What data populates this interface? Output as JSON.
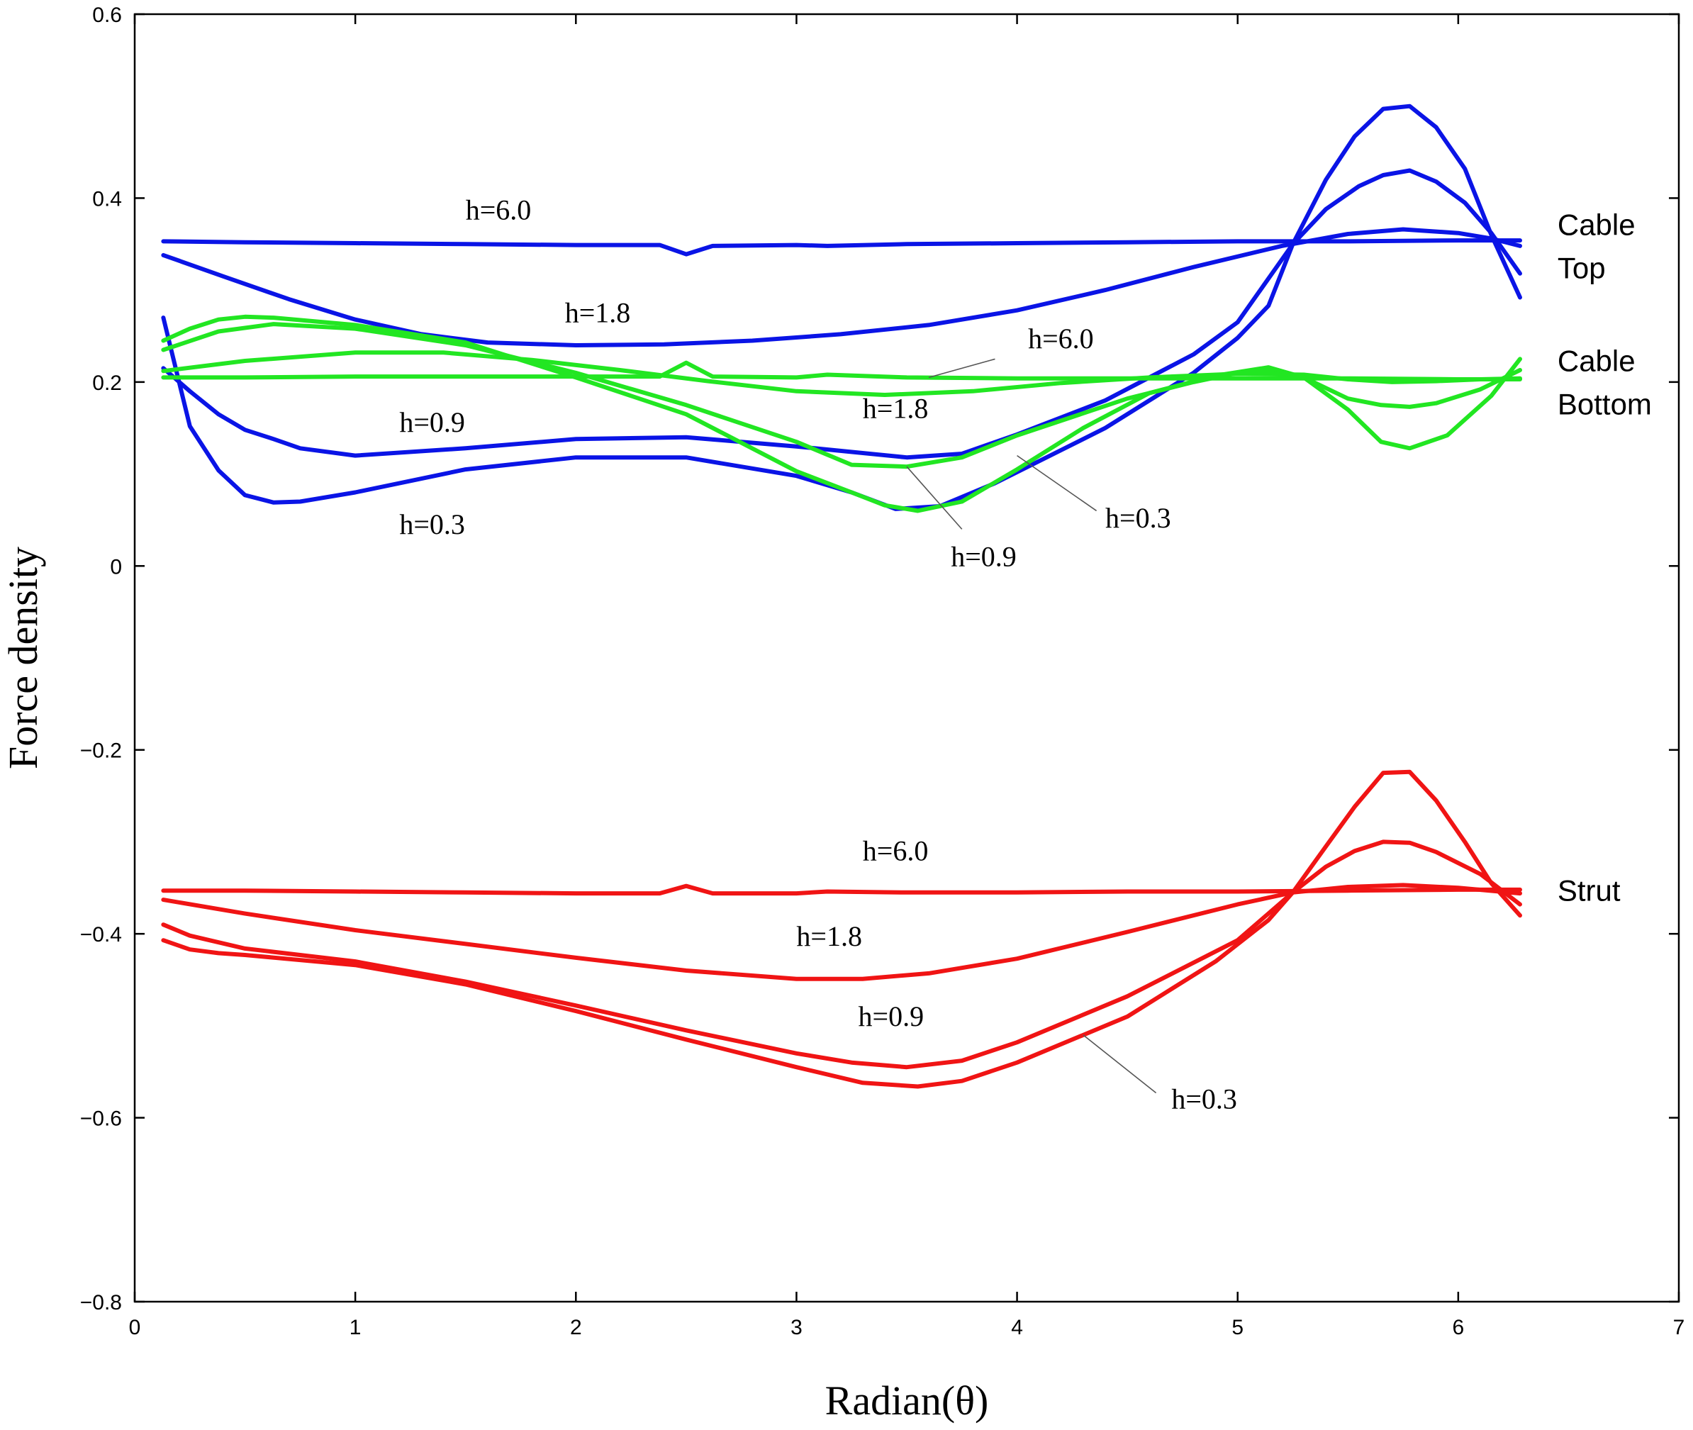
{
  "chart_data": {
    "type": "line",
    "title": "",
    "xlabel": "Radian(θ)",
    "ylabel": "Force density",
    "xlim": [
      0,
      7
    ],
    "ylim": [
      -0.8,
      0.6
    ],
    "xticks": [
      0,
      1,
      2,
      3,
      4,
      5,
      6,
      7
    ],
    "xtick_labels": [
      "0",
      "1",
      "2",
      "3",
      "4",
      "5",
      "6",
      "7"
    ],
    "yticks": [
      -0.8,
      -0.6,
      -0.4,
      -0.2,
      0,
      0.2,
      0.4,
      0.6
    ],
    "ytick_labels": [
      "−0.8",
      "−0.6",
      "−0.4",
      "−0.2",
      "0",
      "0.2",
      "0.4",
      "0.6"
    ],
    "grid": false,
    "colors": {
      "cable_top": "#0a14e6",
      "cable_bottom": "#22e622",
      "strut": "#f01414",
      "leader": "#555555"
    },
    "group_labels": [
      {
        "text": "Cable",
        "x": 6.45,
        "y": 0.36
      },
      {
        "text": "Top",
        "x": 6.45,
        "y": 0.313
      },
      {
        "text": "Cable",
        "x": 6.45,
        "y": 0.212
      },
      {
        "text": "Bottom",
        "x": 6.45,
        "y": 0.165
      },
      {
        "text": "Strut",
        "x": 6.45,
        "y": -0.364
      }
    ],
    "annotations": [
      {
        "text": "h=6.0",
        "x": 1.5,
        "y": 0.377
      },
      {
        "text": "h=1.8",
        "x": 1.95,
        "y": 0.265
      },
      {
        "text": "h=6.0",
        "x": 4.05,
        "y": 0.237,
        "leader_from": [
          3.9,
          0.225
        ],
        "leader_to": [
          3.6,
          0.205
        ]
      },
      {
        "text": "h=1.8",
        "x": 3.3,
        "y": 0.161
      },
      {
        "text": "h=0.9",
        "x": 1.2,
        "y": 0.146
      },
      {
        "text": "h=0.3",
        "x": 1.2,
        "y": 0.035
      },
      {
        "text": "h=0.3",
        "x": 4.4,
        "y": 0.042,
        "leader_from": [
          4.36,
          0.06
        ],
        "leader_to": [
          4.0,
          0.12
        ]
      },
      {
        "text": "h=0.9",
        "x": 3.7,
        "y": 0.0,
        "leader_from": [
          3.75,
          0.04
        ],
        "leader_to": [
          3.5,
          0.108
        ]
      },
      {
        "text": "h=6.0",
        "x": 3.3,
        "y": -0.32
      },
      {
        "text": "h=1.8",
        "x": 3.0,
        "y": -0.413
      },
      {
        "text": "h=0.9",
        "x": 3.28,
        "y": -0.5
      },
      {
        "text": "h=0.3",
        "x": 4.7,
        "y": -0.59,
        "leader_from": [
          4.63,
          -0.573
        ],
        "leader_to": [
          4.3,
          -0.51
        ]
      }
    ],
    "series": [
      {
        "group": "cable_top",
        "values": [
          [
            0.13,
            0.353
          ],
          [
            0.5,
            0.352
          ],
          [
            1.0,
            0.351
          ],
          [
            1.5,
            0.35
          ],
          [
            2.0,
            0.349
          ],
          [
            2.38,
            0.349
          ],
          [
            2.5,
            0.339
          ],
          [
            2.62,
            0.348
          ],
          [
            3.0,
            0.349
          ],
          [
            3.14,
            0.348
          ],
          [
            3.5,
            0.35
          ],
          [
            4.0,
            0.351
          ],
          [
            4.5,
            0.352
          ],
          [
            5.0,
            0.353
          ],
          [
            5.5,
            0.353
          ],
          [
            6.0,
            0.354
          ],
          [
            6.28,
            0.354
          ]
        ]
      },
      {
        "group": "cable_top",
        "values": [
          [
            0.13,
            0.338
          ],
          [
            0.4,
            0.315
          ],
          [
            0.7,
            0.29
          ],
          [
            1.0,
            0.268
          ],
          [
            1.3,
            0.252
          ],
          [
            1.6,
            0.243
          ],
          [
            2.0,
            0.24
          ],
          [
            2.4,
            0.241
          ],
          [
            2.8,
            0.245
          ],
          [
            3.2,
            0.252
          ],
          [
            3.6,
            0.262
          ],
          [
            4.0,
            0.278
          ],
          [
            4.4,
            0.3
          ],
          [
            4.8,
            0.325
          ],
          [
            5.2,
            0.348
          ],
          [
            5.5,
            0.361
          ],
          [
            5.75,
            0.366
          ],
          [
            6.0,
            0.362
          ],
          [
            6.15,
            0.356
          ],
          [
            6.28,
            0.348
          ]
        ]
      },
      {
        "group": "cable_top",
        "values": [
          [
            0.13,
            0.215
          ],
          [
            0.25,
            0.19
          ],
          [
            0.38,
            0.165
          ],
          [
            0.5,
            0.148
          ],
          [
            0.63,
            0.138
          ],
          [
            0.75,
            0.128
          ],
          [
            1.0,
            0.12
          ],
          [
            1.5,
            0.128
          ],
          [
            2.0,
            0.138
          ],
          [
            2.5,
            0.14
          ],
          [
            3.0,
            0.13
          ],
          [
            3.5,
            0.118
          ],
          [
            3.75,
            0.122
          ],
          [
            4.0,
            0.143
          ],
          [
            4.4,
            0.18
          ],
          [
            4.8,
            0.23
          ],
          [
            5.0,
            0.265
          ],
          [
            5.25,
            0.35
          ],
          [
            5.4,
            0.388
          ],
          [
            5.55,
            0.413
          ],
          [
            5.66,
            0.425
          ],
          [
            5.78,
            0.43
          ],
          [
            5.9,
            0.418
          ],
          [
            6.03,
            0.395
          ],
          [
            6.15,
            0.362
          ],
          [
            6.28,
            0.318
          ]
        ]
      },
      {
        "group": "cable_top",
        "values": [
          [
            0.13,
            0.27
          ],
          [
            0.25,
            0.152
          ],
          [
            0.38,
            0.104
          ],
          [
            0.5,
            0.077
          ],
          [
            0.63,
            0.069
          ],
          [
            0.75,
            0.07
          ],
          [
            1.0,
            0.08
          ],
          [
            1.5,
            0.105
          ],
          [
            2.0,
            0.118
          ],
          [
            2.5,
            0.118
          ],
          [
            3.0,
            0.098
          ],
          [
            3.25,
            0.08
          ],
          [
            3.45,
            0.062
          ],
          [
            3.65,
            0.065
          ],
          [
            3.9,
            0.09
          ],
          [
            4.4,
            0.15
          ],
          [
            4.8,
            0.21
          ],
          [
            5.0,
            0.248
          ],
          [
            5.14,
            0.283
          ],
          [
            5.25,
            0.35
          ],
          [
            5.4,
            0.42
          ],
          [
            5.53,
            0.467
          ],
          [
            5.66,
            0.497
          ],
          [
            5.78,
            0.5
          ],
          [
            5.9,
            0.477
          ],
          [
            6.03,
            0.432
          ],
          [
            6.15,
            0.36
          ],
          [
            6.28,
            0.292
          ]
        ]
      },
      {
        "group": "cable_bottom",
        "values": [
          [
            0.13,
            0.205
          ],
          [
            0.5,
            0.205
          ],
          [
            1.0,
            0.206
          ],
          [
            1.5,
            0.206
          ],
          [
            2.0,
            0.206
          ],
          [
            2.38,
            0.206
          ],
          [
            2.5,
            0.221
          ],
          [
            2.62,
            0.206
          ],
          [
            3.0,
            0.205
          ],
          [
            3.14,
            0.208
          ],
          [
            3.5,
            0.205
          ],
          [
            4.0,
            0.204
          ],
          [
            4.5,
            0.204
          ],
          [
            5.0,
            0.204
          ],
          [
            5.5,
            0.204
          ],
          [
            6.0,
            0.203
          ],
          [
            6.28,
            0.203
          ]
        ]
      },
      {
        "group": "cable_bottom",
        "values": [
          [
            0.13,
            0.212
          ],
          [
            0.5,
            0.223
          ],
          [
            1.0,
            0.232
          ],
          [
            1.4,
            0.232
          ],
          [
            1.8,
            0.224
          ],
          [
            2.2,
            0.213
          ],
          [
            2.6,
            0.201
          ],
          [
            3.0,
            0.19
          ],
          [
            3.4,
            0.186
          ],
          [
            3.8,
            0.19
          ],
          [
            4.2,
            0.199
          ],
          [
            4.6,
            0.205
          ],
          [
            5.0,
            0.209
          ],
          [
            5.3,
            0.208
          ],
          [
            5.5,
            0.203
          ],
          [
            5.7,
            0.2
          ],
          [
            5.9,
            0.201
          ],
          [
            6.1,
            0.203
          ],
          [
            6.28,
            0.204
          ]
        ]
      },
      {
        "group": "cable_bottom",
        "values": [
          [
            0.13,
            0.235
          ],
          [
            0.38,
            0.255
          ],
          [
            0.63,
            0.263
          ],
          [
            1.0,
            0.258
          ],
          [
            1.5,
            0.24
          ],
          [
            2.0,
            0.21
          ],
          [
            2.5,
            0.175
          ],
          [
            3.0,
            0.135
          ],
          [
            3.25,
            0.11
          ],
          [
            3.5,
            0.108
          ],
          [
            3.75,
            0.118
          ],
          [
            4.0,
            0.142
          ],
          [
            4.5,
            0.182
          ],
          [
            4.8,
            0.2
          ],
          [
            5.0,
            0.21
          ],
          [
            5.14,
            0.212
          ],
          [
            5.3,
            0.205
          ],
          [
            5.5,
            0.182
          ],
          [
            5.65,
            0.175
          ],
          [
            5.78,
            0.173
          ],
          [
            5.9,
            0.177
          ],
          [
            6.1,
            0.192
          ],
          [
            6.28,
            0.213
          ]
        ]
      },
      {
        "group": "cable_bottom",
        "values": [
          [
            0.13,
            0.245
          ],
          [
            0.25,
            0.258
          ],
          [
            0.38,
            0.268
          ],
          [
            0.5,
            0.271
          ],
          [
            0.63,
            0.27
          ],
          [
            1.0,
            0.262
          ],
          [
            1.5,
            0.243
          ],
          [
            2.0,
            0.205
          ],
          [
            2.5,
            0.165
          ],
          [
            3.0,
            0.103
          ],
          [
            3.25,
            0.08
          ],
          [
            3.4,
            0.066
          ],
          [
            3.55,
            0.06
          ],
          [
            3.75,
            0.07
          ],
          [
            4.0,
            0.105
          ],
          [
            4.3,
            0.15
          ],
          [
            4.6,
            0.188
          ],
          [
            4.9,
            0.207
          ],
          [
            5.14,
            0.216
          ],
          [
            5.3,
            0.205
          ],
          [
            5.5,
            0.17
          ],
          [
            5.65,
            0.135
          ],
          [
            5.78,
            0.128
          ],
          [
            5.95,
            0.142
          ],
          [
            6.15,
            0.185
          ],
          [
            6.28,
            0.225
          ]
        ]
      },
      {
        "group": "strut",
        "values": [
          [
            0.13,
            -0.353
          ],
          [
            0.5,
            -0.353
          ],
          [
            1.0,
            -0.354
          ],
          [
            1.5,
            -0.355
          ],
          [
            2.0,
            -0.356
          ],
          [
            2.38,
            -0.356
          ],
          [
            2.5,
            -0.348
          ],
          [
            2.62,
            -0.356
          ],
          [
            3.0,
            -0.356
          ],
          [
            3.14,
            -0.354
          ],
          [
            3.5,
            -0.355
          ],
          [
            4.0,
            -0.355
          ],
          [
            4.5,
            -0.354
          ],
          [
            5.0,
            -0.354
          ],
          [
            5.5,
            -0.353
          ],
          [
            6.0,
            -0.352
          ],
          [
            6.28,
            -0.352
          ]
        ]
      },
      {
        "group": "strut",
        "values": [
          [
            0.13,
            -0.363
          ],
          [
            0.5,
            -0.378
          ],
          [
            1.0,
            -0.396
          ],
          [
            1.5,
            -0.411
          ],
          [
            2.0,
            -0.426
          ],
          [
            2.5,
            -0.44
          ],
          [
            3.0,
            -0.449
          ],
          [
            3.3,
            -0.449
          ],
          [
            3.6,
            -0.443
          ],
          [
            4.0,
            -0.427
          ],
          [
            4.5,
            -0.398
          ],
          [
            5.0,
            -0.368
          ],
          [
            5.25,
            -0.355
          ],
          [
            5.5,
            -0.349
          ],
          [
            5.75,
            -0.347
          ],
          [
            6.0,
            -0.35
          ],
          [
            6.28,
            -0.356
          ]
        ]
      },
      {
        "group": "strut",
        "values": [
          [
            0.13,
            -0.39
          ],
          [
            0.25,
            -0.402
          ],
          [
            0.5,
            -0.416
          ],
          [
            1.0,
            -0.43
          ],
          [
            1.5,
            -0.452
          ],
          [
            2.0,
            -0.478
          ],
          [
            2.5,
            -0.505
          ],
          [
            3.0,
            -0.53
          ],
          [
            3.25,
            -0.54
          ],
          [
            3.5,
            -0.545
          ],
          [
            3.75,
            -0.538
          ],
          [
            4.0,
            -0.518
          ],
          [
            4.5,
            -0.468
          ],
          [
            5.0,
            -0.407
          ],
          [
            5.25,
            -0.355
          ],
          [
            5.4,
            -0.327
          ],
          [
            5.53,
            -0.31
          ],
          [
            5.66,
            -0.3
          ],
          [
            5.78,
            -0.301
          ],
          [
            5.9,
            -0.311
          ],
          [
            6.1,
            -0.335
          ],
          [
            6.28,
            -0.368
          ]
        ]
      },
      {
        "group": "strut",
        "values": [
          [
            0.13,
            -0.407
          ],
          [
            0.25,
            -0.417
          ],
          [
            0.38,
            -0.421
          ],
          [
            0.5,
            -0.423
          ],
          [
            1.0,
            -0.434
          ],
          [
            1.5,
            -0.455
          ],
          [
            2.0,
            -0.484
          ],
          [
            2.5,
            -0.515
          ],
          [
            3.0,
            -0.545
          ],
          [
            3.3,
            -0.562
          ],
          [
            3.55,
            -0.566
          ],
          [
            3.75,
            -0.56
          ],
          [
            4.0,
            -0.54
          ],
          [
            4.5,
            -0.49
          ],
          [
            4.9,
            -0.43
          ],
          [
            5.14,
            -0.385
          ],
          [
            5.25,
            -0.355
          ],
          [
            5.4,
            -0.305
          ],
          [
            5.53,
            -0.262
          ],
          [
            5.66,
            -0.225
          ],
          [
            5.78,
            -0.224
          ],
          [
            5.9,
            -0.255
          ],
          [
            6.03,
            -0.3
          ],
          [
            6.15,
            -0.345
          ],
          [
            6.28,
            -0.38
          ]
        ]
      }
    ]
  }
}
